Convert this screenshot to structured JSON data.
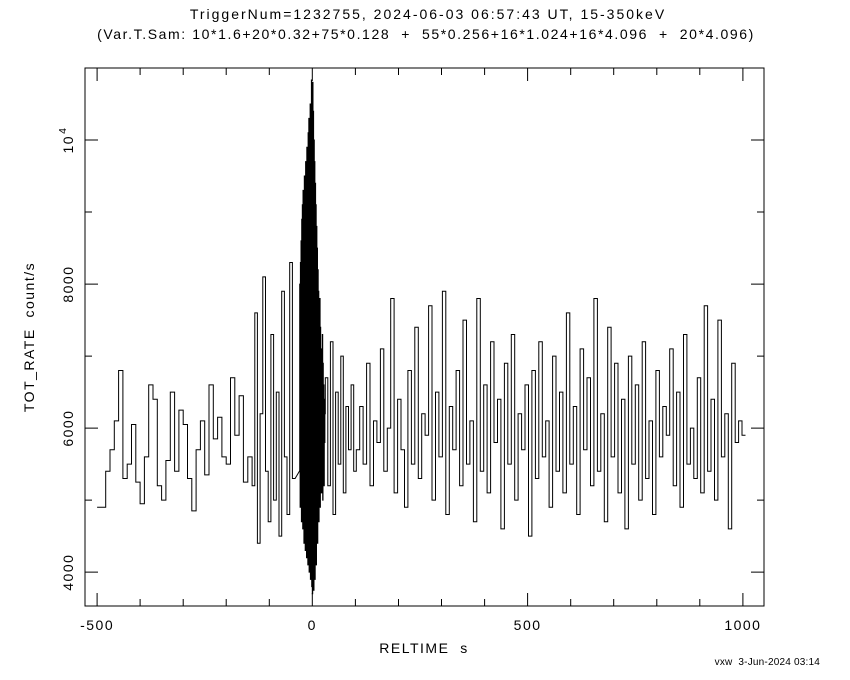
{
  "colors": {
    "foreground": "#000000",
    "background": "#ffffff"
  },
  "footer": {
    "stamp": "vxw  3-Jun-2024 03:14"
  },
  "chart_data": {
    "type": "line",
    "subtype": "step-histogram-lightcurve",
    "title": "TriggerNum=1232755, 2024-06-03 06:57:43 UT, 15-350keV",
    "subtitle": "(Var.T.Sam: 10*1.6+20*0.32+75*0.128  +  55*0.256+16*1.024+16*4.096  +  20*4.096)",
    "xlabel": "RELTIME  s",
    "ylabel": "TOT_RATE  count/s",
    "xlim": [
      -528,
      1049
    ],
    "ylim": [
      3530,
      11000
    ],
    "xticks": [
      {
        "v": -500,
        "label": "-500"
      },
      {
        "v": 0,
        "label": "0"
      },
      {
        "v": 500,
        "label": "500"
      },
      {
        "v": 1000,
        "label": "1000"
      }
    ],
    "yticks": [
      {
        "v": 4000,
        "label": "4000"
      },
      {
        "v": 6000,
        "label": "6000"
      },
      {
        "v": 8000,
        "label": "8000"
      },
      {
        "v": 10000,
        "label": "10^4"
      }
    ],
    "x_minor_step": 100,
    "y_minor_step": 1000,
    "grid": false,
    "legend": false,
    "line_color": "#000000",
    "series": [
      {
        "name": "TOT_RATE",
        "segments": [
          {
            "t_start": -500,
            "dt": 20,
            "values": [
              4900
            ]
          },
          {
            "t_start": -480,
            "dt": 10,
            "values": [
              5400,
              5700,
              6100,
              6800,
              5300,
              5500,
              6050,
              5250,
              4950,
              5600,
              6600,
              6400,
              5200,
              5000,
              5550,
              6500,
              5400,
              6250,
              6050,
              5300,
              4850,
              5700,
              6100,
              5350,
              6600,
              5850,
              6150,
              5600,
              5500,
              6700,
              5900,
              6450,
              5250,
              5600
            ]
          },
          {
            "t_start": -140,
            "dt": 6.25,
            "values": [
              5200,
              7600,
              4400,
              6200,
              8100,
              5400,
              4700,
              7300,
              5000,
              6500,
              4500,
              7900,
              5600,
              4800,
              8300,
              5300
            ]
          },
          {
            "t_start": -30,
            "dt": 0.75,
            "values": [
              5400,
              8000,
              4900,
              8300,
              5100,
              8600,
              4700,
              8900,
              5300,
              9100,
              4600,
              9300,
              5000,
              9000,
              4400,
              9500,
              5200,
              9200,
              4300,
              9700,
              5100,
              9400,
              4200,
              9900,
              5000,
              9600,
              4100,
              10100,
              4800,
              10300,
              4000,
              10000,
              4600,
              10500,
              3900,
              10200,
              4400,
              10833,
              3800,
              10600,
              3700,
              10800,
              4200,
              10400,
              3750,
              10000,
              4500,
              9700,
              3900,
              9400,
              4600,
              9100,
              4100,
              8800,
              5000,
              8500,
              4400,
              8200,
              5200,
              7900,
              4700,
              7600,
              5400,
              7800,
              4900,
              7400,
              5600,
              7100,
              5100,
              6800,
              5500,
              7300,
              5000,
              6900,
              5700,
              6600,
              5200,
              6400,
              5800,
              6200
            ]
          },
          {
            "t_start": 30,
            "dt": 6,
            "values": [
              6700,
              5200,
              7200,
              4800,
              6500,
              5500,
              7000,
              5100,
              6300,
              5700,
              6600,
              5400
            ]
          },
          {
            "t_start": 102,
            "dt": 8,
            "values": [
              5700,
              6300,
              5500,
              6900,
              5200,
              6100,
              5800,
              7100,
              5400,
              6000,
              7800,
              5100,
              6400,
              5700,
              4900,
              6800,
              5500,
              7400,
              5300,
              6200,
              5900,
              7700,
              5000,
              6500,
              5600,
              7900,
              4800,
              6300,
              5700,
              6800,
              5200,
              7500,
              5500,
              6100,
              4700,
              7800,
              5400,
              6600,
              5100,
              7200,
              5800,
              6400,
              4600,
              6900,
              5500,
              7300,
              5000,
              6200,
              5700,
              6600,
              4500,
              6800,
              5300,
              7200,
              5600,
              6100,
              4900,
              7000,
              5400,
              6500,
              5100,
              7600,
              5500,
              6300,
              4800,
              7100,
              5700,
              6700,
              5200,
              7800,
              5400,
              6200,
              4700,
              7400,
              5600,
              6900,
              5100,
              6400,
              4600,
              7000,
              5500,
              6600,
              5000,
              7200,
              5300,
              6100,
              4800,
              6800,
              5600,
              6300,
              5900,
              7100,
              5200,
              6500,
              4900,
              7300,
              5500,
              6000,
              5300,
              6700,
              5100,
              7700,
              5400,
              6400,
              5000,
              7500,
              5600,
              6200,
              4600,
              6900,
              5800,
              6100,
              5900
            ]
          }
        ]
      }
    ]
  }
}
